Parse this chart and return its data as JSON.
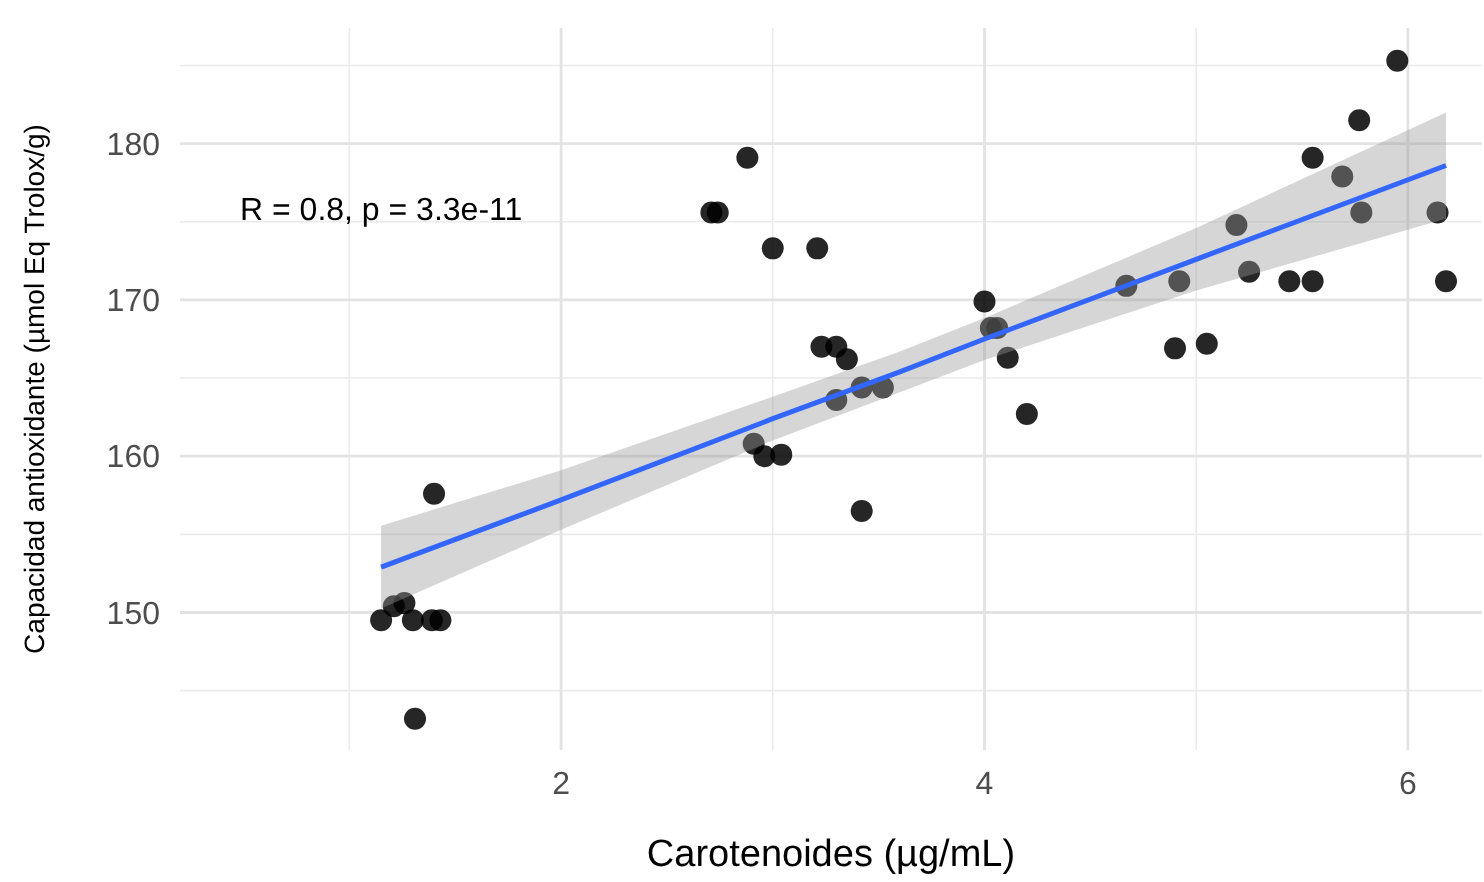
{
  "chart_data": {
    "type": "scatter",
    "xlabel": "Carotenoides (µg/mL)",
    "ylabel": "Capacidad antioxidante (µmol Eq Trolox/g)",
    "annotations": [
      "R = 0.8, p = 3.3e-11"
    ],
    "xlim": [
      0.2,
      6.35
    ],
    "xticks": [
      2,
      4,
      6
    ],
    "ylim": [
      141.2,
      187.4
    ],
    "yticks": [
      150,
      160,
      170,
      180
    ],
    "grid": true,
    "series": [
      {
        "marker": "circle",
        "color": "#000000",
        "x": [
          2.88,
          2.71,
          2.74,
          3.0,
          3.21,
          3.23,
          3.3,
          3.35,
          2.91,
          2.96,
          3.04,
          1.4,
          1.15,
          1.26,
          1.3,
          1.39,
          1.43,
          1.21,
          1.31,
          3.3,
          3.42,
          3.52,
          3.42,
          4.0,
          4.03,
          4.06,
          4.11,
          4.2,
          4.67,
          4.92,
          4.9,
          5.05,
          5.19,
          5.25,
          5.44,
          5.55,
          5.55,
          5.69,
          5.77,
          5.78,
          5.95,
          6.14,
          6.18
        ],
        "values": [
          179.1,
          175.6,
          175.6,
          173.3,
          173.3,
          167.0,
          167.0,
          166.2,
          160.8,
          160.0,
          160.1,
          157.6,
          149.5,
          150.6,
          149.5,
          149.5,
          149.5,
          150.4,
          143.2,
          163.6,
          164.4,
          164.4,
          156.5,
          169.9,
          168.2,
          168.2,
          166.3,
          162.7,
          170.9,
          171.2,
          166.9,
          167.2,
          174.8,
          171.8,
          171.2,
          171.2,
          179.1,
          177.9,
          181.5,
          175.6,
          185.3,
          175.6,
          171.2
        ]
      },
      {
        "type": "line",
        "color": "#3366ff",
        "x": [
          1.15,
          2,
          3,
          3.6,
          4,
          5,
          6.18
        ],
        "values": [
          152.9,
          157.2,
          162.4,
          165.4,
          167.5,
          172.6,
          178.6
        ],
        "lower": [
          150.25,
          155.3,
          161.0,
          164.1,
          166.15,
          170.6,
          175.2
        ],
        "upper": [
          155.55,
          159.1,
          163.8,
          166.7,
          168.85,
          174.6,
          182.0
        ]
      }
    ]
  }
}
